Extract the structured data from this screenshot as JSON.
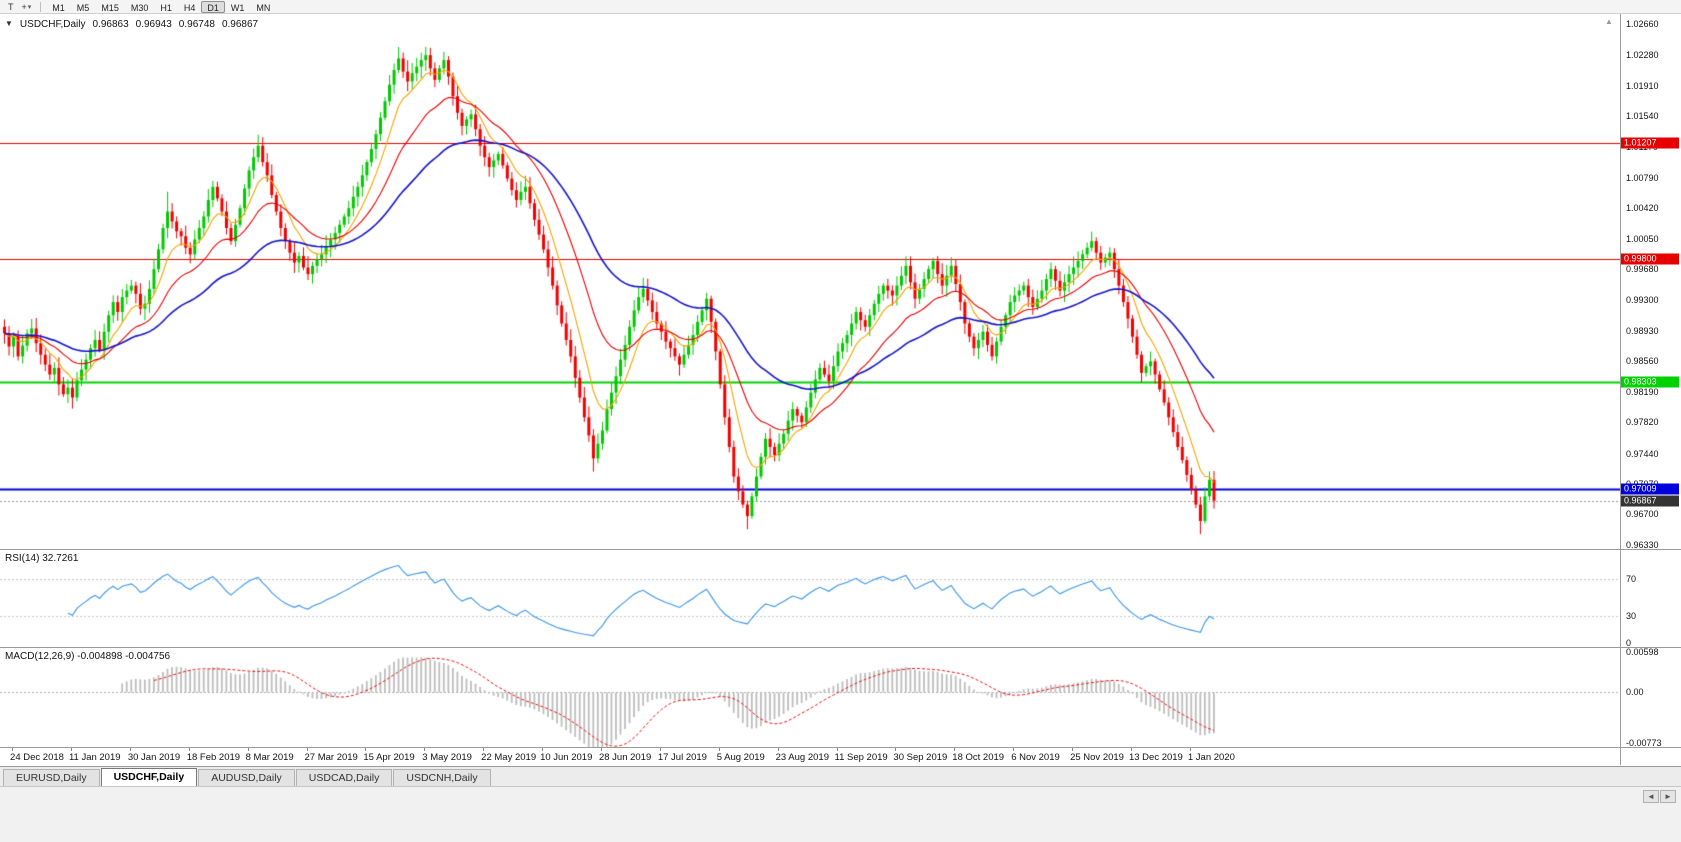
{
  "toolbar": {
    "tools": [
      {
        "name": "text-cursor",
        "icon": "T"
      },
      {
        "name": "crosshair",
        "icon": "+",
        "caret": "▾"
      }
    ],
    "timeframes": [
      "M1",
      "M5",
      "M15",
      "M30",
      "H1",
      "H4",
      "D1",
      "W1",
      "MN"
    ],
    "active_timeframe": "D1"
  },
  "chart_header": {
    "collapse_icon": "▼",
    "symbol": "USDCHF,Daily",
    "open": "0.96863",
    "high": "0.96943",
    "low": "0.96748",
    "close": "0.96867"
  },
  "icons": {
    "up_arrow": "▲",
    "left_arrow": "◄",
    "right_arrow": "►"
  },
  "chart_data": {
    "type": "candlestick",
    "title": "USDCHF,Daily",
    "symbol": "USDCHF",
    "timeframe": "Daily",
    "y_range": [
      0.9628,
      1.0278
    ],
    "y_tick_labels": [
      "1.02660",
      "1.02280",
      "1.01910",
      "1.01540",
      "1.01170",
      "1.00790",
      "1.00420",
      "1.00050",
      "0.99680",
      "0.99300",
      "0.98930",
      "0.98560",
      "0.98190",
      "0.97820",
      "0.97440",
      "0.97070",
      "0.96700",
      "0.96330"
    ],
    "x_tick_labels": [
      "24 Dec 2018",
      "11 Jan 2019",
      "30 Jan 2019",
      "18 Feb 2019",
      "8 Mar 2019",
      "27 Mar 2019",
      "15 Apr 2019",
      "3 May 2019",
      "22 May 2019",
      "10 Jun 2019",
      "28 Jun 2019",
      "17 Jul 2019",
      "5 Aug 2019",
      "23 Aug 2019",
      "11 Sep 2019",
      "30 Sep 2019",
      "18 Oct 2019",
      "6 Nov 2019",
      "25 Nov 2019",
      "13 Dec 2019",
      "1 Jan 2020"
    ],
    "closes": [
      0.989,
      0.9874,
      0.9886,
      0.9862,
      0.9875,
      0.989,
      0.9896,
      0.9878,
      0.9864,
      0.9852,
      0.984,
      0.9848,
      0.9828,
      0.9816,
      0.9824,
      0.9812,
      0.9833,
      0.9846,
      0.9858,
      0.9872,
      0.9882,
      0.987,
      0.9892,
      0.9912,
      0.9928,
      0.9916,
      0.9934,
      0.9942,
      0.9948,
      0.9938,
      0.992,
      0.9926,
      0.9944,
      0.9968,
      0.9992,
      1.0018,
      1.0038,
      1.0026,
      1.0014,
      1.0008,
      0.9994,
      0.9986,
      1.0004,
      1.0018,
      1.0032,
      1.0052,
      1.0068,
      1.0054,
      1.0038,
      1.0018,
      1.0002,
      1.0022,
      1.0042,
      1.0066,
      1.0088,
      1.0104,
      1.0118,
      1.0098,
      1.0082,
      1.0058,
      1.0038,
      1.0018,
      1.0002,
      0.9988,
      0.9976,
      0.9984,
      0.997,
      0.9962,
      0.9972,
      0.998,
      0.9986,
      0.9996,
      1.0004,
      1.0012,
      1.0022,
      1.0032,
      1.0042,
      1.0056,
      1.0068,
      1.0082,
      1.0098,
      1.0114,
      1.0132,
      1.0152,
      1.0172,
      1.0192,
      1.021,
      1.0224,
      1.0208,
      1.0196,
      1.0206,
      1.0214,
      1.0222,
      1.0228,
      1.0212,
      1.0198,
      1.0212,
      1.0222,
      1.0202,
      1.0178,
      1.0158,
      1.0142,
      1.015,
      1.0156,
      1.0138,
      1.0118,
      1.0104,
      1.0092,
      1.01,
      1.0108,
      1.0094,
      1.0078,
      1.0064,
      1.0052,
      1.0062,
      1.0068,
      1.0048,
      1.0028,
      1.001,
      0.9992,
      0.997,
      0.9948,
      0.9924,
      0.9902,
      0.9882,
      0.9862,
      0.9836,
      0.9812,
      0.9788,
      0.9766,
      0.9738,
      0.9756,
      0.9772,
      0.9798,
      0.9818,
      0.9838,
      0.9858,
      0.9876,
      0.9898,
      0.9918,
      0.9934,
      0.9944,
      0.993,
      0.9916,
      0.9902,
      0.9892,
      0.988,
      0.9872,
      0.9862,
      0.9852,
      0.9864,
      0.9876,
      0.9888,
      0.9904,
      0.9918,
      0.9932,
      0.9904,
      0.9868,
      0.9828,
      0.9788,
      0.9752,
      0.9716,
      0.9698,
      0.9682,
      0.9668,
      0.9692,
      0.9716,
      0.974,
      0.9762,
      0.9752,
      0.9742,
      0.9756,
      0.9768,
      0.9784,
      0.9798,
      0.979,
      0.9782,
      0.98,
      0.9818,
      0.9834,
      0.9848,
      0.984,
      0.9832,
      0.985,
      0.9868,
      0.9878,
      0.9888,
      0.9902,
      0.9916,
      0.9906,
      0.9898,
      0.9912,
      0.9926,
      0.9938,
      0.9948,
      0.9942,
      0.9936,
      0.9948,
      0.996,
      0.9972,
      0.9952,
      0.9932,
      0.9944,
      0.9956,
      0.9968,
      0.9978,
      0.9962,
      0.9948,
      0.996,
      0.9972,
      0.995,
      0.9928,
      0.9902,
      0.9886,
      0.9872,
      0.9882,
      0.9892,
      0.9876,
      0.9862,
      0.988,
      0.9898,
      0.9912,
      0.9928,
      0.9936,
      0.9942,
      0.9948,
      0.9934,
      0.9922,
      0.9932,
      0.9942,
      0.9956,
      0.9968,
      0.9954,
      0.9942,
      0.9952,
      0.9962,
      0.997,
      0.9978,
      0.9986,
      0.9994,
      1.0002,
      0.9988,
      0.9976,
      0.9982,
      0.9988,
      0.9968,
      0.9948,
      0.9928,
      0.9908,
      0.9886,
      0.9864,
      0.9842,
      0.985,
      0.9856,
      0.984,
      0.9822,
      0.9806,
      0.9788,
      0.977,
      0.9752,
      0.9736,
      0.9718,
      0.97,
      0.9682,
      0.9662,
      0.9692,
      0.9712,
      0.96867
    ],
    "wick_highs": {
      "36": 1.0062,
      "93": 1.0238
    },
    "wick_lows": {
      "15": 0.98,
      "130": 0.9722,
      "164": 0.9652,
      "264": 0.9646
    },
    "up_color": "#00C800",
    "down_color": "#F00000",
    "moving_averages": [
      {
        "period": 8,
        "type": "ema",
        "color": "#F4A300"
      },
      {
        "period": 20,
        "type": "ema",
        "color": "#E60000"
      },
      {
        "period": 45,
        "type": "ema",
        "color": "#1414C8"
      }
    ],
    "levels": [
      {
        "price": 1.01207,
        "label": "1.01207",
        "color": "#E60000",
        "width": 1
      },
      {
        "price": 0.998,
        "label": "0.99800",
        "color": "#E60000",
        "width": 1
      },
      {
        "price": 0.98303,
        "label": "0.98303",
        "color": "#00D200",
        "width": 2
      },
      {
        "price": 0.97009,
        "label": "0.97009",
        "color": "#0000DC",
        "width": 2
      }
    ],
    "current_price": {
      "price": 0.96867,
      "label": "0.96867",
      "tag_color": "#333333",
      "line_color": "#999999"
    }
  },
  "rsi_panel": {
    "label": "RSI(14) 32.7261",
    "period": 14,
    "value": 32.7261,
    "line_color": "#3C96E6",
    "level_lines": [
      70,
      30
    ],
    "axis_labels": [
      {
        "text": "70",
        "value": 70
      },
      {
        "text": "30",
        "value": 30
      },
      {
        "text": "0",
        "value": 0
      }
    ]
  },
  "macd_panel": {
    "label": "MACD(12,26,9) -0.004898 -0.004756",
    "fast": 12,
    "slow": 26,
    "signal": 9,
    "main_value": -0.004898,
    "signal_value": -0.004756,
    "hist_color": "#BDBDBD",
    "signal_color": "#E61414",
    "axis_max": 0.00598,
    "axis_min": -0.00773,
    "axis_labels": [
      {
        "text": "0.00598",
        "value": 0.00598
      },
      {
        "text": "0.00",
        "value": 0
      },
      {
        "text": "-0.00773",
        "value": -0.00773
      }
    ]
  },
  "tabs": [
    {
      "label": "EURUSD,Daily",
      "active": false
    },
    {
      "label": "USDCHF,Daily",
      "active": true
    },
    {
      "label": "AUDUSD,Daily",
      "active": false
    },
    {
      "label": "USDCAD,Daily",
      "active": false
    },
    {
      "label": "USDCNH,Daily",
      "active": false
    }
  ]
}
